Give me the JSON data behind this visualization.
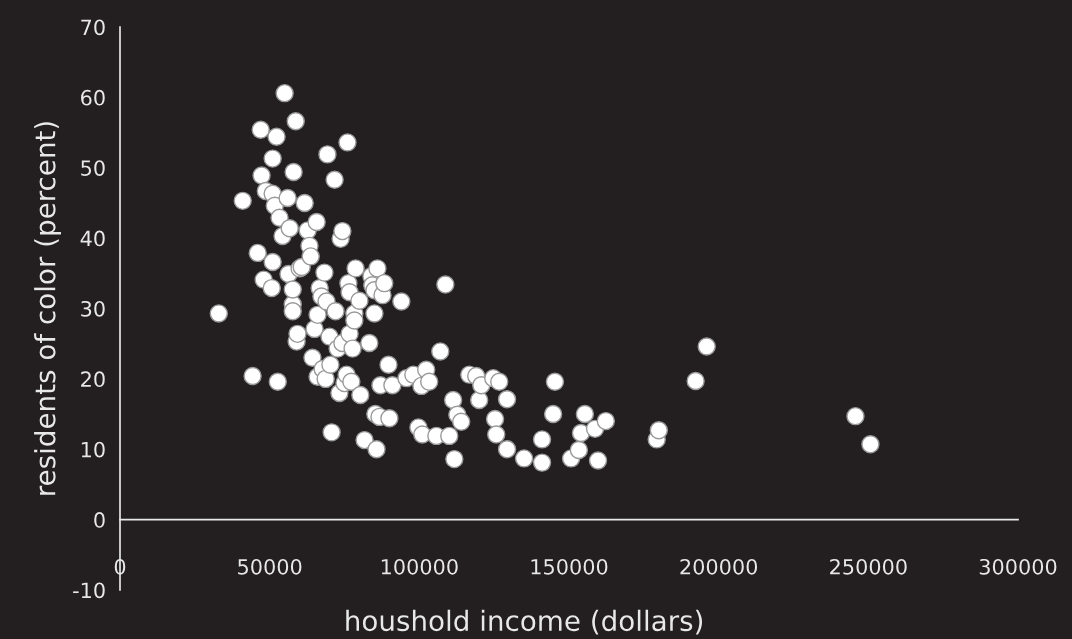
{
  "chart_data": {
    "type": "scatter",
    "xlabel": "houshold income (dollars)",
    "ylabel": "residents of color (percent)",
    "xlim": [
      0,
      300000
    ],
    "xticks": [
      0,
      50000,
      100000,
      150000,
      200000,
      250000,
      300000
    ],
    "ylim": [
      -10,
      70
    ],
    "yticks": [
      -10,
      0,
      10,
      20,
      30,
      40,
      50,
      60,
      70
    ],
    "grid": false,
    "legend": false,
    "marker": "circle",
    "series": [
      {
        "color": "#ffffff",
        "x": [
          33000,
          41000,
          44300,
          46000,
          47000,
          47300,
          48000,
          48700,
          50700,
          51000,
          51000,
          51000,
          51700,
          52300,
          52700,
          53300,
          54300,
          55000,
          56000,
          56300,
          56700,
          57700,
          57700,
          57700,
          58000,
          58700,
          59000,
          59300,
          60000,
          60700,
          61700,
          62700,
          63300,
          63700,
          64300,
          65000,
          65700,
          66000,
          66000,
          66700,
          67300,
          67700,
          68300,
          68700,
          69000,
          69300,
          70000,
          70300,
          70700,
          71700,
          72000,
          72700,
          73300,
          73700,
          74300,
          74300,
          75000,
          75700,
          76000,
          76300,
          76700,
          76700,
          77300,
          77700,
          78300,
          78300,
          78700,
          80000,
          80300,
          81700,
          83300,
          84000,
          84300,
          85000,
          85000,
          85300,
          85700,
          86000,
          86700,
          87000,
          87700,
          88300,
          89700,
          90000,
          91000,
          94000,
          95700,
          98000,
          99700,
          100700,
          101000,
          102300,
          103300,
          105700,
          107000,
          108700,
          110000,
          111300,
          111700,
          112700,
          114000,
          116700,
          119000,
          120000,
          120700,
          124700,
          125300,
          125700,
          126700,
          129300,
          129300,
          135000,
          141000,
          141000,
          144700,
          145300,
          150700,
          153300,
          154000,
          155300,
          158700,
          159700,
          162300,
          179300,
          180000,
          192300,
          196000,
          245700,
          250700
        ],
        "values": [
          29.3,
          45.3,
          20.4,
          37.9,
          55.4,
          48.9,
          34.1,
          46.7,
          32.9,
          36.6,
          51.3,
          46.3,
          44.6,
          54.4,
          19.6,
          42.9,
          40.3,
          60.6,
          45.7,
          34.9,
          41.4,
          30.6,
          32.7,
          29.6,
          49.4,
          56.6,
          25.3,
          26.4,
          35.7,
          35.9,
          45,
          41.1,
          38.9,
          37.4,
          23,
          27.1,
          42.3,
          20.3,
          29.1,
          32.9,
          31.7,
          21.4,
          35.1,
          20,
          31,
          51.9,
          26,
          22,
          12.4,
          48.3,
          29.6,
          24.3,
          18,
          39.9,
          41,
          25.1,
          19.4,
          20.6,
          53.6,
          33.6,
          32.3,
          26.4,
          19.6,
          24.3,
          29.3,
          28.3,
          35.7,
          31.1,
          17.7,
          11.3,
          25.1,
          34.6,
          33.3,
          32.6,
          29.3,
          15,
          10,
          35.7,
          14.6,
          19.1,
          31.9,
          33.6,
          22,
          14.4,
          19.1,
          31,
          20.1,
          20.6,
          13.1,
          19,
          12.1,
          21.3,
          19.6,
          11.9,
          23.9,
          33.4,
          11.9,
          17,
          8.6,
          14.9,
          13.9,
          20.6,
          20.4,
          17,
          19.1,
          20.1,
          14.3,
          12.1,
          19.6,
          17.1,
          10,
          8.7,
          11.4,
          8.1,
          15,
          19.6,
          8.7,
          9.9,
          12.3,
          15,
          12.9,
          8.4,
          14,
          11.4,
          12.7,
          19.7,
          24.6,
          14.7,
          10.7
        ]
      }
    ]
  }
}
